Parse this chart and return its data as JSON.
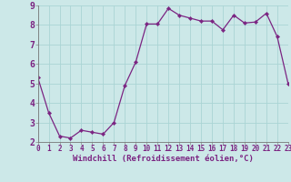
{
  "x": [
    0,
    1,
    2,
    3,
    4,
    5,
    6,
    7,
    8,
    9,
    10,
    11,
    12,
    13,
    14,
    15,
    16,
    17,
    18,
    19,
    20,
    21,
    22,
    23
  ],
  "y": [
    5.3,
    3.5,
    2.3,
    2.2,
    2.6,
    2.5,
    2.4,
    3.0,
    4.9,
    6.1,
    8.05,
    8.05,
    8.85,
    8.5,
    8.35,
    8.2,
    8.2,
    7.75,
    8.5,
    8.1,
    8.15,
    8.6,
    7.4,
    5.0
  ],
  "xlim": [
    0,
    23
  ],
  "ylim": [
    2,
    9
  ],
  "yticks": [
    2,
    3,
    4,
    5,
    6,
    7,
    8,
    9
  ],
  "xticks": [
    0,
    1,
    2,
    3,
    4,
    5,
    6,
    7,
    8,
    9,
    10,
    11,
    12,
    13,
    14,
    15,
    16,
    17,
    18,
    19,
    20,
    21,
    22,
    23
  ],
  "xlabel": "Windchill (Refroidissement éolien,°C)",
  "line_color": "#7B2482",
  "marker": "D",
  "marker_size": 2.2,
  "bg_color": "#cce8e8",
  "grid_color": "#aad4d4",
  "tick_label_color": "#7B2482",
  "xlabel_color": "#7B2482",
  "xlabel_fontsize": 6.5,
  "ytick_fontsize": 7,
  "xtick_fontsize": 5.5,
  "linewidth": 0.9
}
